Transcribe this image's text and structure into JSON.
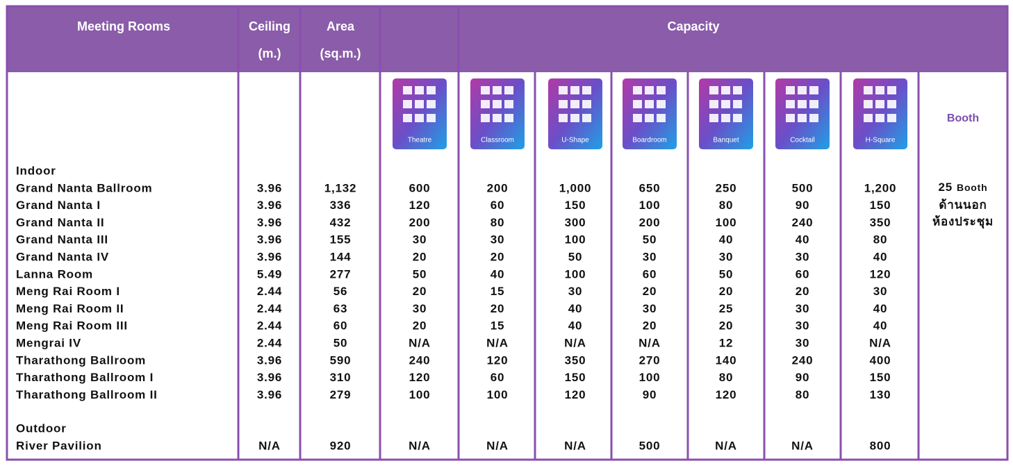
{
  "header": {
    "rooms": "Meeting Rooms",
    "ceiling": [
      "Ceiling",
      "(m.)"
    ],
    "area": [
      "Area",
      "(sq.m.)"
    ],
    "capacity": "Capacity"
  },
  "layouts": [
    "Theatre",
    "Classroom",
    "U-Shape",
    "Boardroom",
    "Banquet",
    "Cocktail",
    "H-Square"
  ],
  "booth_header": "Booth",
  "sections": [
    {
      "title": "Indoor",
      "rows": [
        [
          "Grand Nanta Ballroom",
          "3.96",
          "1,132",
          "600",
          "200",
          "1,000",
          "650",
          "250",
          "500",
          "1,200"
        ],
        [
          "Grand Nanta I",
          "3.96",
          "336",
          "120",
          "60",
          "150",
          "100",
          "80",
          "90",
          "150"
        ],
        [
          "Grand Nanta II",
          "3.96",
          "432",
          "200",
          "80",
          "300",
          "200",
          "100",
          "240",
          "350"
        ],
        [
          "Grand Nanta III",
          "3.96",
          "155",
          "30",
          "30",
          "100",
          "50",
          "40",
          "40",
          "80"
        ],
        [
          "Grand Nanta IV",
          "3.96",
          "144",
          "20",
          "20",
          "50",
          "30",
          "30",
          "30",
          "40"
        ],
        [
          "Lanna Room",
          "5.49",
          "277",
          "50",
          "40",
          "100",
          "60",
          "50",
          "60",
          "120"
        ],
        [
          "Meng Rai Room I",
          "2.44",
          "56",
          "20",
          "15",
          "30",
          "20",
          "20",
          "20",
          "30"
        ],
        [
          "Meng Rai Room II",
          "2.44",
          "63",
          "30",
          "20",
          "40",
          "30",
          "25",
          "30",
          "40"
        ],
        [
          "Meng Rai Room III",
          "2.44",
          "60",
          "20",
          "15",
          "40",
          "20",
          "20",
          "30",
          "40"
        ],
        [
          "Mengrai IV",
          "2.44",
          "50",
          "N/A",
          "N/A",
          "N/A",
          "N/A",
          "12",
          "30",
          "N/A"
        ],
        [
          "Tharathong Ballroom",
          "3.96",
          "590",
          "240",
          "120",
          "350",
          "270",
          "140",
          "240",
          "400"
        ],
        [
          "Tharathong Ballroom I",
          "3.96",
          "310",
          "120",
          "60",
          "150",
          "100",
          "80",
          "90",
          "150"
        ],
        [
          "Tharathong Ballroom II",
          "3.96",
          "279",
          "100",
          "100",
          "120",
          "90",
          "120",
          "80",
          "130"
        ]
      ]
    },
    {
      "title": "Outdoor",
      "rows": [
        [
          "River Pavilion",
          "N/A",
          "920",
          "N/A",
          "N/A",
          "N/A",
          "500",
          "N/A",
          "N/A",
          "800"
        ]
      ]
    }
  ],
  "booth_note": {
    "count": "25",
    "unit": "Booth",
    "lines": [
      "ด้านนอก",
      "ห้องประชุม"
    ]
  }
}
